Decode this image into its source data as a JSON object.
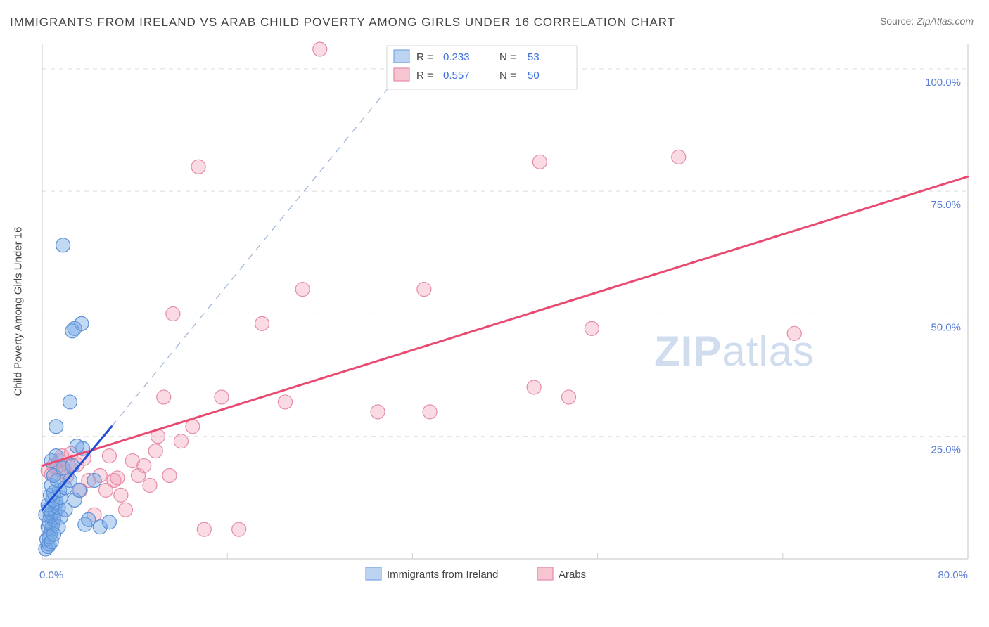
{
  "title": "IMMIGRANTS FROM IRELAND VS ARAB CHILD POVERTY AMONG GIRLS UNDER 16 CORRELATION CHART",
  "source_label": "Source:",
  "source_value": "ZipAtlas.com",
  "watermark_a": "ZIP",
  "watermark_b": "atlas",
  "chart": {
    "type": "scatter-with-trend",
    "background_color": "#ffffff",
    "grid_color": "#dcdcdc",
    "axis_color": "#cfcfcf",
    "tick_label_color": "#5b7fd4",
    "y_axis_title": "Child Poverty Among Girls Under 16",
    "marker_radius": 10,
    "xlim": [
      0,
      80
    ],
    "ylim": [
      0,
      105
    ],
    "x_ticks": [
      0,
      80
    ],
    "x_tick_labels": [
      "0.0%",
      "80.0%"
    ],
    "x_inner_ticks": [
      16,
      32,
      48,
      64
    ],
    "y_ticks": [
      25,
      50,
      75,
      100
    ],
    "y_tick_labels": [
      "25.0%",
      "50.0%",
      "75.0%",
      "100.0%"
    ]
  },
  "legend_top": {
    "r_label": "R =",
    "n_label": "N =",
    "swatch_blue_fill": "#bcd3f2",
    "swatch_blue_stroke": "#7aa7e0",
    "swatch_pink_fill": "#f7c5d2",
    "swatch_pink_stroke": "#e58ba6",
    "rows": [
      {
        "r": "0.233",
        "n": "53"
      },
      {
        "r": "0.557",
        "n": "50"
      }
    ]
  },
  "legend_bottom": {
    "items": [
      {
        "label": "Immigrants from Ireland",
        "fill": "#bcd3f2",
        "stroke": "#7aa7e0"
      },
      {
        "label": "Arabs",
        "fill": "#f7c5d2",
        "stroke": "#e58ba6"
      }
    ]
  },
  "series_blue": {
    "name": "Immigrants from Ireland",
    "fill": "rgba(120,170,230,0.45)",
    "stroke": "#5b8fd6",
    "trend_visible": {
      "x1": 0,
      "y1": 10,
      "x2": 6,
      "y2": 27,
      "color": "#1d4ed8",
      "width": 3
    },
    "trend_extension": {
      "x1": 6,
      "y1": 27,
      "x2": 33,
      "y2": 105,
      "color": "#9bb3d6",
      "dash": "10 8"
    },
    "points": [
      [
        0.3,
        2
      ],
      [
        0.5,
        2.5
      ],
      [
        0.6,
        3
      ],
      [
        0.4,
        4
      ],
      [
        0.7,
        5
      ],
      [
        0.8,
        6
      ],
      [
        0.5,
        6.5
      ],
      [
        0.9,
        7
      ],
      [
        0.6,
        7.5
      ],
      [
        1.0,
        8
      ],
      [
        0.7,
        8.8
      ],
      [
        0.3,
        9
      ],
      [
        0.8,
        9.3
      ],
      [
        1.1,
        9.6
      ],
      [
        0.6,
        10.2
      ],
      [
        1.4,
        10.5
      ],
      [
        0.5,
        11
      ],
      [
        1.2,
        11.5
      ],
      [
        0.9,
        12
      ],
      [
        1.6,
        12.5
      ],
      [
        0.7,
        13
      ],
      [
        1.0,
        13.5
      ],
      [
        1.5,
        14
      ],
      [
        2.0,
        14.5
      ],
      [
        0.8,
        15
      ],
      [
        1.3,
        16
      ],
      [
        2.4,
        16
      ],
      [
        1.0,
        17
      ],
      [
        1.8,
        18.5
      ],
      [
        2.6,
        19
      ],
      [
        0.8,
        20
      ],
      [
        1.2,
        21
      ],
      [
        3.5,
        22.5
      ],
      [
        3.0,
        23
      ],
      [
        1.2,
        27
      ],
      [
        3.7,
        7
      ],
      [
        4.0,
        8
      ],
      [
        5.0,
        6.5
      ],
      [
        5.8,
        7.5
      ],
      [
        4.5,
        16
      ],
      [
        2.4,
        32
      ],
      [
        2.8,
        47
      ],
      [
        3.4,
        48
      ],
      [
        2.6,
        46.5
      ],
      [
        1.8,
        64
      ],
      [
        0.6,
        4.5
      ],
      [
        0.8,
        3.5
      ],
      [
        1.0,
        5
      ],
      [
        1.4,
        6.5
      ],
      [
        1.6,
        8.5
      ],
      [
        2.0,
        10
      ],
      [
        2.8,
        12
      ],
      [
        3.2,
        14
      ]
    ]
  },
  "series_pink": {
    "name": "Arabs",
    "fill": "rgba(240,150,175,0.35)",
    "stroke": "#e58ba6",
    "trend": {
      "x1": 0,
      "y1": 19,
      "x2": 80,
      "y2": 78,
      "color": "#e94a72",
      "width": 3
    },
    "points": [
      [
        0.5,
        18
      ],
      [
        1.0,
        19
      ],
      [
        1.5,
        20
      ],
      [
        0.8,
        17.2
      ],
      [
        1.2,
        18.5
      ],
      [
        1.8,
        17.8
      ],
      [
        2.1,
        16.8
      ],
      [
        2.5,
        21.5
      ],
      [
        3.0,
        19.2
      ],
      [
        3.3,
        14
      ],
      [
        4.0,
        16
      ],
      [
        4.5,
        9
      ],
      [
        5.0,
        17
      ],
      [
        5.5,
        14
      ],
      [
        5.8,
        21
      ],
      [
        6.2,
        16
      ],
      [
        6.5,
        16.5
      ],
      [
        7.2,
        10
      ],
      [
        7.8,
        20
      ],
      [
        8.3,
        17
      ],
      [
        8.8,
        19
      ],
      [
        9.3,
        15
      ],
      [
        10.0,
        25
      ],
      [
        10.5,
        33
      ],
      [
        11.0,
        17
      ],
      [
        12.0,
        24
      ],
      [
        13.0,
        27
      ],
      [
        14.0,
        6
      ],
      [
        15.5,
        33
      ],
      [
        17.0,
        6
      ],
      [
        19.0,
        48
      ],
      [
        21.0,
        32
      ],
      [
        22.5,
        55
      ],
      [
        24.0,
        104
      ],
      [
        29.0,
        30
      ],
      [
        33.0,
        55
      ],
      [
        33.5,
        30
      ],
      [
        42.5,
        35
      ],
      [
        43.0,
        81
      ],
      [
        45.5,
        33
      ],
      [
        47.5,
        47
      ],
      [
        55.0,
        82
      ],
      [
        65.0,
        46
      ],
      [
        11.3,
        50
      ],
      [
        13.5,
        80
      ],
      [
        1.7,
        21
      ],
      [
        2.3,
        19
      ],
      [
        3.6,
        20.5
      ],
      [
        6.8,
        13
      ],
      [
        9.8,
        22
      ]
    ]
  }
}
